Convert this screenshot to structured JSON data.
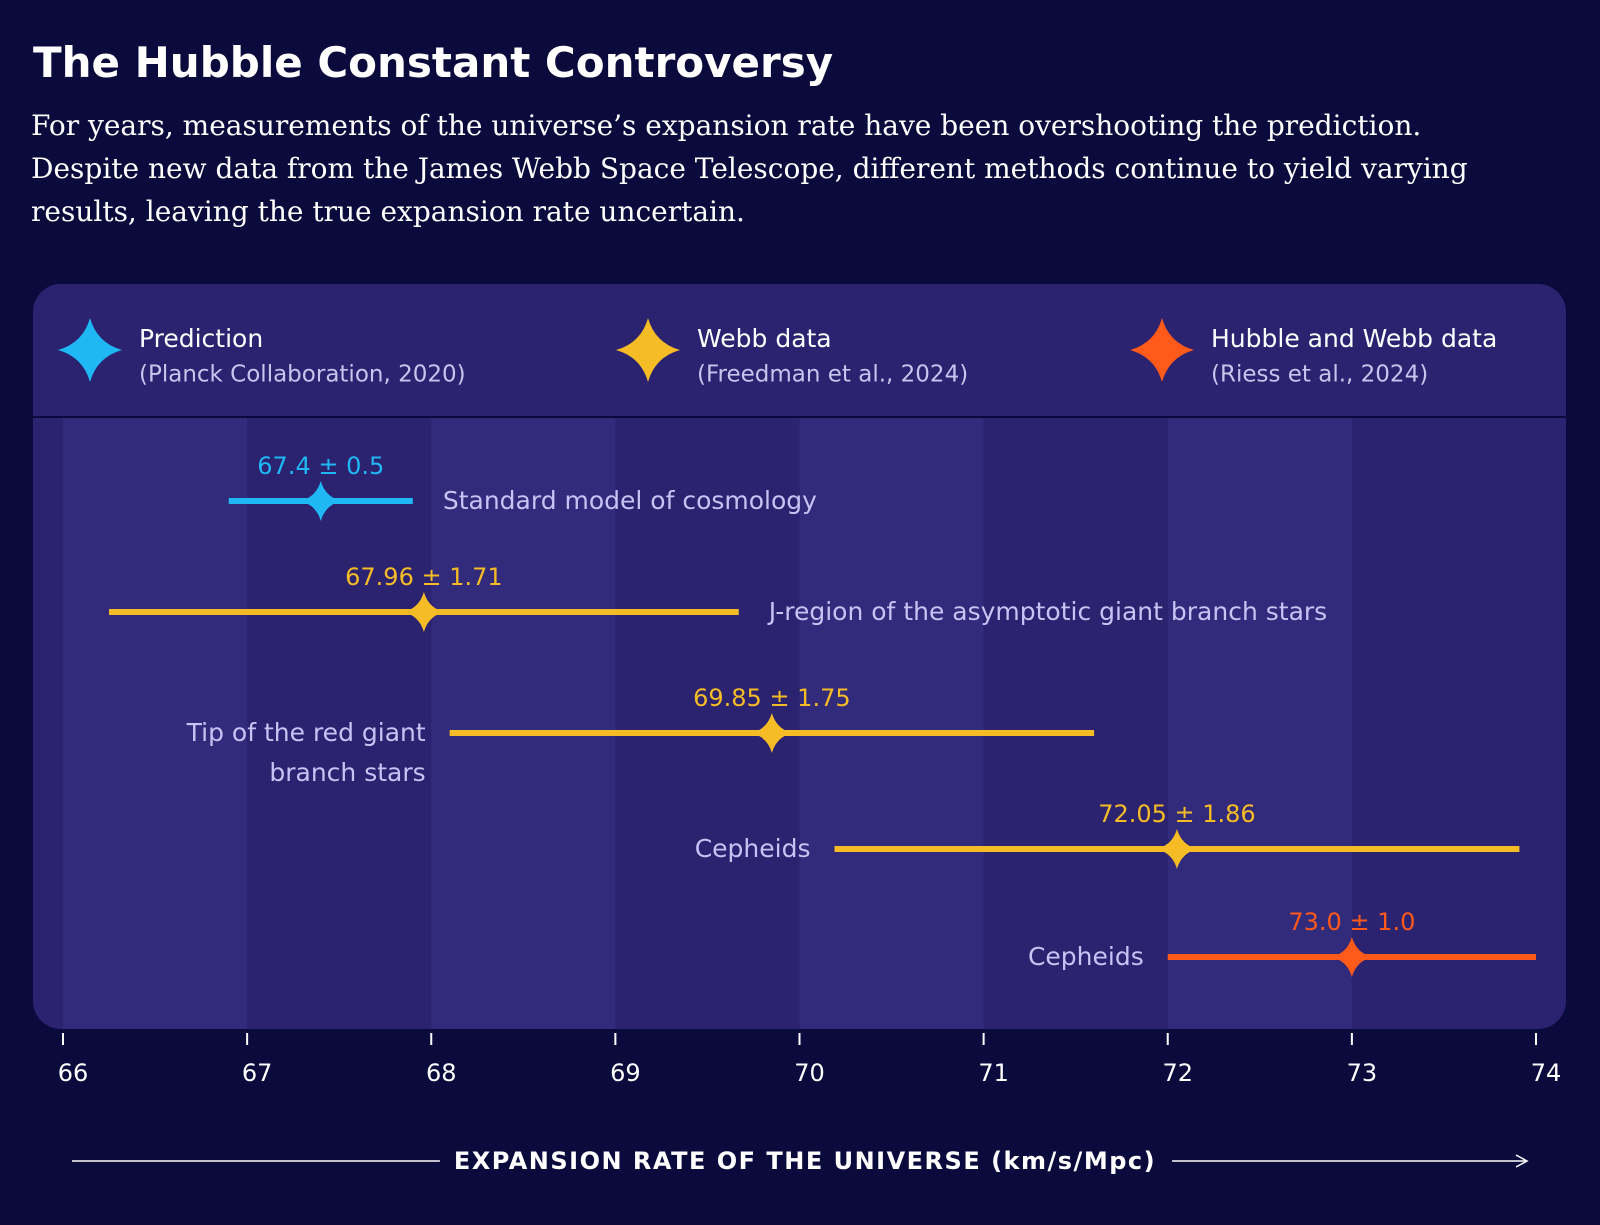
{
  "chart_data": {
    "type": "errorbar",
    "title": "The Hubble Constant Controversy",
    "subtitle": "For years, measurements of the universe’s expansion rate have been overshooting the prediction. Despite new data from the James Webb Space Telescope, different methods continue to yield varying results, leaving the true expansion rate uncertain.",
    "xlabel": "EXPANSION RATE OF THE UNIVERSE (km/s/Mpc)",
    "xlim": [
      66,
      74
    ],
    "xticks": [
      66,
      67,
      68,
      69,
      70,
      71,
      72,
      73,
      74
    ],
    "series": [
      {
        "name": "Prediction",
        "note": "(Planck Collaboration, 2020)",
        "color": "#1fb8f5",
        "categories": [
          "Standard model of cosmology"
        ],
        "values": [
          67.4
        ],
        "errors": [
          0.5
        ],
        "value_labels": [
          "67.4 ± 0.5"
        ]
      },
      {
        "name": "Webb data",
        "note": "(Freedman et al., 2024)",
        "color": "#f5bc26",
        "categories": [
          "J-region of the asymptotic giant branch stars",
          "Tip of the red giant branch stars",
          "Cepheids"
        ],
        "values": [
          67.96,
          69.85,
          72.05
        ],
        "errors": [
          1.71,
          1.75,
          1.86
        ],
        "value_labels": [
          "67.96 ± 1.71",
          "69.85 ± 1.75",
          "72.05 ± 1.86"
        ]
      },
      {
        "name": "Hubble and Webb data",
        "note": "(Riess et al., 2024)",
        "color": "#ff5a1a",
        "categories": [
          "Cepheids"
        ],
        "values": [
          73.0
        ],
        "errors": [
          1.0
        ],
        "value_labels": [
          "73.0 ± 1.0"
        ]
      }
    ]
  }
}
